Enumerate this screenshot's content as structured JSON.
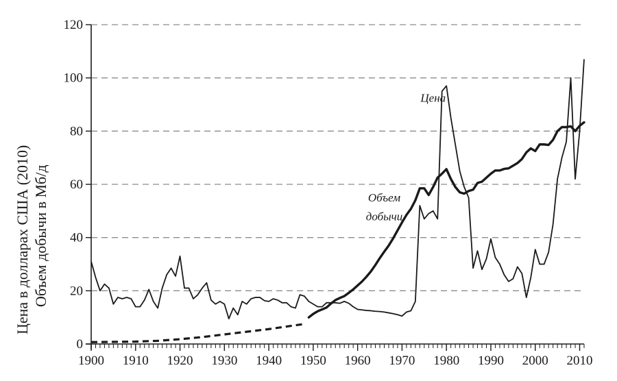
{
  "chart_data": {
    "type": "line",
    "title": "",
    "xlabel": "",
    "ylabel": [
      "Цена в долларах США (2010)",
      "Объем добычи в Мб/д"
    ],
    "xlim": [
      1900,
      2011
    ],
    "ylim": [
      0,
      120
    ],
    "x_ticks": [
      1900,
      1910,
      1920,
      1930,
      1940,
      1950,
      1960,
      1970,
      1980,
      1990,
      2000,
      2010
    ],
    "y_ticks": [
      0,
      20,
      40,
      60,
      80,
      100,
      120
    ],
    "grid": {
      "horizontal": true,
      "style": "dashed",
      "color": "#8c8c8c"
    },
    "legend": null,
    "annotations": [
      {
        "text": "Цена",
        "x": 1977,
        "y": 91,
        "series": "price"
      },
      {
        "text": "Объем",
        "x": 1966,
        "y": 53.5,
        "series": "production"
      },
      {
        "text": "добычи",
        "x": 1966,
        "y": 46.5,
        "series": "production"
      }
    ],
    "series": [
      {
        "name": "Цена",
        "key": "price",
        "style": "thin-solid",
        "color": "#1a1a1a",
        "x": [
          1900,
          1901,
          1902,
          1903,
          1904,
          1905,
          1906,
          1907,
          1908,
          1909,
          1910,
          1911,
          1912,
          1913,
          1914,
          1915,
          1916,
          1917,
          1918,
          1919,
          1920,
          1921,
          1922,
          1923,
          1924,
          1925,
          1926,
          1927,
          1928,
          1929,
          1930,
          1931,
          1932,
          1933,
          1934,
          1935,
          1936,
          1937,
          1938,
          1939,
          1940,
          1941,
          1942,
          1943,
          1944,
          1945,
          1946,
          1947,
          1948,
          1949,
          1950,
          1951,
          1952,
          1953,
          1954,
          1955,
          1956,
          1957,
          1958,
          1959,
          1960,
          1961,
          1962,
          1963,
          1964,
          1965,
          1966,
          1967,
          1968,
          1969,
          1970,
          1971,
          1972,
          1973,
          1974,
          1975,
          1976,
          1977,
          1978,
          1979,
          1980,
          1981,
          1982,
          1983,
          1984,
          1985,
          1986,
          1987,
          1988,
          1989,
          1990,
          1991,
          1992,
          1993,
          1994,
          1995,
          1996,
          1997,
          1998,
          1999,
          2000,
          2001,
          2002,
          2003,
          2004,
          2005,
          2006,
          2007,
          2008,
          2009,
          2010,
          2011
        ],
        "values": [
          31,
          25,
          20,
          22.5,
          21,
          15,
          17.5,
          17,
          17.5,
          17,
          14,
          14,
          16.5,
          20.5,
          16,
          13.5,
          21,
          26,
          28.5,
          25.5,
          33,
          21,
          21,
          17,
          18.5,
          21,
          23,
          16.5,
          15,
          16,
          15,
          9.5,
          13.5,
          11,
          16,
          15,
          17,
          17.5,
          17.5,
          16.3,
          16,
          17,
          16.5,
          15.5,
          15.5,
          14,
          13.5,
          18.5,
          18,
          16,
          15,
          14,
          14,
          15.5,
          15.5,
          15.5,
          15.3,
          16,
          15.3,
          14,
          13,
          12.8,
          12.6,
          12.5,
          12.3,
          12.2,
          12,
          11.7,
          11.4,
          11,
          10.5,
          12,
          12.5,
          16,
          52,
          47,
          49,
          50,
          47,
          95,
          97,
          85,
          75,
          65,
          59,
          55,
          28.5,
          35,
          28,
          32,
          39.5,
          32.5,
          30,
          26,
          23.5,
          24.5,
          29,
          26.5,
          17.5,
          25,
          35.5,
          30,
          30,
          34.5,
          45,
          62,
          70,
          76,
          100,
          62,
          80,
          107
        ]
      },
      {
        "name": "Объем добычи",
        "key": "production",
        "style": "thick-solid (dashed before 1949)",
        "color": "#1a1a1a",
        "dashed_until": 1948,
        "x": [
          1900,
          1905,
          1910,
          1915,
          1920,
          1925,
          1930,
          1935,
          1940,
          1945,
          1948,
          1949,
          1950,
          1951,
          1952,
          1953,
          1954,
          1955,
          1956,
          1957,
          1958,
          1959,
          1960,
          1961,
          1962,
          1963,
          1964,
          1965,
          1966,
          1967,
          1968,
          1969,
          1970,
          1971,
          1972,
          1973,
          1974,
          1975,
          1976,
          1977,
          1978,
          1979,
          1980,
          1981,
          1982,
          1983,
          1984,
          1985,
          1986,
          1987,
          1988,
          1989,
          1990,
          1991,
          1992,
          1993,
          1994,
          1995,
          1996,
          1997,
          1998,
          1999,
          2000,
          2001,
          2002,
          2003,
          2004,
          2005,
          2006,
          2007,
          2008,
          2009,
          2010,
          2011
        ],
        "values": [
          0.7,
          0.8,
          0.9,
          1.2,
          1.8,
          2.6,
          3.6,
          4.6,
          5.6,
          6.8,
          7.5,
          10,
          11.3,
          12.3,
          13,
          13.7,
          15.2,
          16.5,
          17.3,
          18,
          19.2,
          20.5,
          22,
          23.5,
          25.3,
          27.3,
          29.7,
          32.3,
          34.7,
          37,
          39.7,
          42.7,
          45.7,
          48.5,
          50.8,
          54,
          58.5,
          58.5,
          56,
          59,
          62.5,
          64,
          65.7,
          62,
          59,
          57,
          56.5,
          57.5,
          58,
          60.5,
          61,
          62.5,
          64,
          65.2,
          65.2,
          65.8,
          66,
          67,
          68,
          69.5,
          72,
          73.5,
          72.5,
          75,
          75,
          74.8,
          76.7,
          80,
          81.5,
          81.5,
          81.8,
          80,
          82,
          83.3
        ]
      }
    ]
  },
  "axes": {
    "ylabel_line1": "Цена в долларах США (2010)",
    "ylabel_line2": "Объем добычи в Мб/д"
  }
}
